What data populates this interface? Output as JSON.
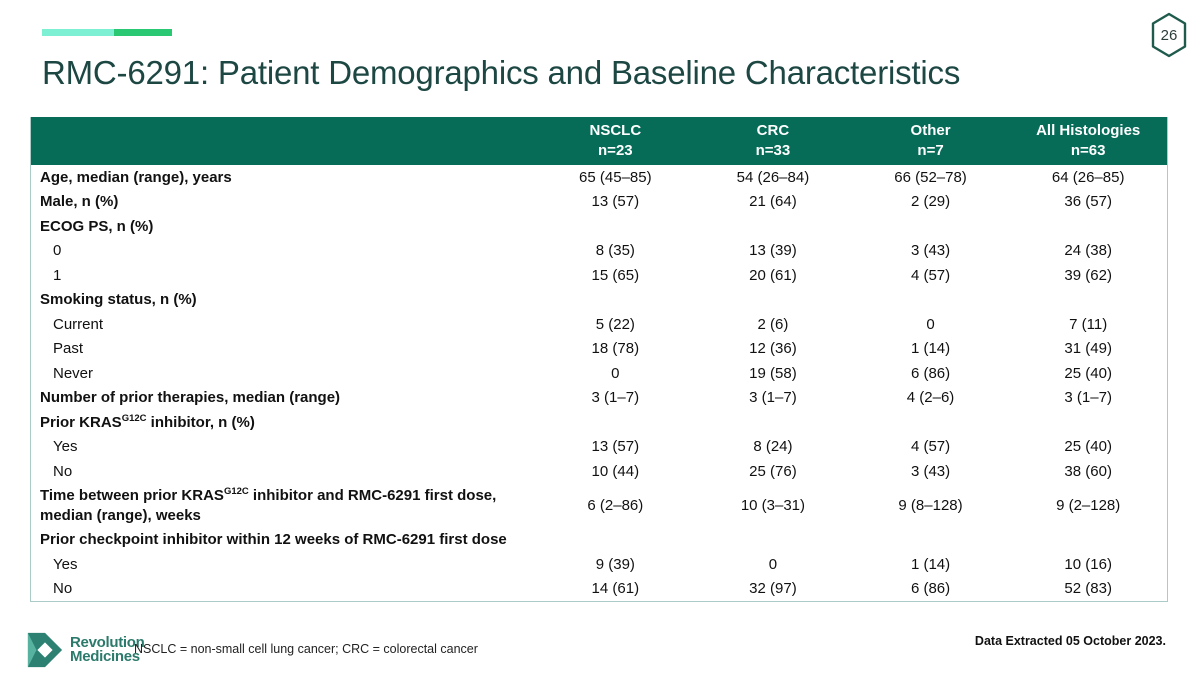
{
  "page": {
    "number": "26",
    "title": "RMC-6291: Patient Demographics and Baseline Characteristics"
  },
  "colors": {
    "accent_mint": "#7DEFD2",
    "accent_green": "#2AC873",
    "header_green": "#066C58",
    "title_teal": "#1D4743",
    "table_border": "#AACBC6",
    "logo_teal": "#2D8173",
    "hexagon_stroke": "#1F5B4C"
  },
  "icons": {
    "page_badge": "hexagon-outline-icon",
    "logo": "revolution-medicines-arrow-icon"
  },
  "table": {
    "columns": [
      {
        "label": "NSCLC",
        "n": "n=23"
      },
      {
        "label": "CRC",
        "n": "n=33"
      },
      {
        "label": "Other",
        "n": "n=7"
      },
      {
        "label": "All Histologies",
        "n": "n=63"
      }
    ],
    "rows": [
      {
        "bold": true,
        "indent": false,
        "label": [
          "Age, median (range), years"
        ],
        "values": [
          "65 (45–85)",
          "54 (26–84)",
          "66 (52–78)",
          "64 (26–85)"
        ]
      },
      {
        "bold": true,
        "indent": false,
        "label": [
          "Male, n (%)"
        ],
        "values": [
          "13 (57)",
          "21 (64)",
          "2 (29)",
          "36 (57)"
        ]
      },
      {
        "bold": true,
        "indent": false,
        "label": [
          "ECOG PS, n (%)"
        ],
        "values": [
          "",
          "",
          "",
          ""
        ]
      },
      {
        "bold": false,
        "indent": true,
        "label": [
          "0"
        ],
        "values": [
          "8 (35)",
          "13 (39)",
          "3 (43)",
          "24 (38)"
        ]
      },
      {
        "bold": false,
        "indent": true,
        "label": [
          "1"
        ],
        "values": [
          "15 (65)",
          "20 (61)",
          "4 (57)",
          "39 (62)"
        ]
      },
      {
        "bold": true,
        "indent": false,
        "label": [
          "Smoking status, n (%)"
        ],
        "values": [
          "",
          "",
          "",
          ""
        ]
      },
      {
        "bold": false,
        "indent": true,
        "label": [
          "Current"
        ],
        "values": [
          "5 (22)",
          "2 (6)",
          "0",
          "7 (11)"
        ]
      },
      {
        "bold": false,
        "indent": true,
        "label": [
          "Past"
        ],
        "values": [
          "18 (78)",
          "12 (36)",
          "1 (14)",
          "31 (49)"
        ]
      },
      {
        "bold": false,
        "indent": true,
        "label": [
          "Never"
        ],
        "values": [
          "0",
          "19 (58)",
          "6 (86)",
          "25 (40)"
        ]
      },
      {
        "bold": true,
        "indent": false,
        "label": [
          "Number of prior therapies, median (range)"
        ],
        "values": [
          "3 (1–7)",
          "3 (1–7)",
          "4 (2–6)",
          "3 (1–7)"
        ]
      },
      {
        "bold": true,
        "indent": false,
        "label": [
          "Prior KRAS",
          {
            "sup": "G12C"
          },
          " inhibitor, n (%)"
        ],
        "values": [
          "",
          "",
          "",
          ""
        ]
      },
      {
        "bold": false,
        "indent": true,
        "label": [
          "Yes"
        ],
        "values": [
          "13 (57)",
          "8 (24)",
          "4 (57)",
          "25 (40)"
        ]
      },
      {
        "bold": false,
        "indent": true,
        "label": [
          "No"
        ],
        "values": [
          "10 (44)",
          "25 (76)",
          "3 (43)",
          "38 (60)"
        ]
      },
      {
        "bold": true,
        "indent": false,
        "label": [
          "Time between prior KRAS",
          {
            "sup": "G12C"
          },
          " inhibitor and RMC-6291 first dose, median (range), weeks"
        ],
        "values": [
          "6 (2–86)",
          "10 (3–31)",
          "9 (8–128)",
          "9 (2–128)"
        ]
      },
      {
        "bold": true,
        "indent": false,
        "label": [
          "Prior checkpoint inhibitor within 12 weeks of RMC-6291 first dose"
        ],
        "values": [
          "",
          "",
          "",
          ""
        ]
      },
      {
        "bold": false,
        "indent": true,
        "label": [
          "Yes"
        ],
        "values": [
          "9 (39)",
          "0",
          "1 (14)",
          "10 (16)"
        ]
      },
      {
        "bold": false,
        "indent": true,
        "label": [
          "No"
        ],
        "values": [
          "14 (61)",
          "32 (97)",
          "6 (86)",
          "52 (83)"
        ]
      }
    ]
  },
  "footer": {
    "logo_line1": "Revolution",
    "logo_line2": "Medicines",
    "footnote": "NSCLC = non-small cell lung cancer; CRC = colorectal cancer",
    "data_extracted": "Data Extracted 05 October 2023."
  }
}
